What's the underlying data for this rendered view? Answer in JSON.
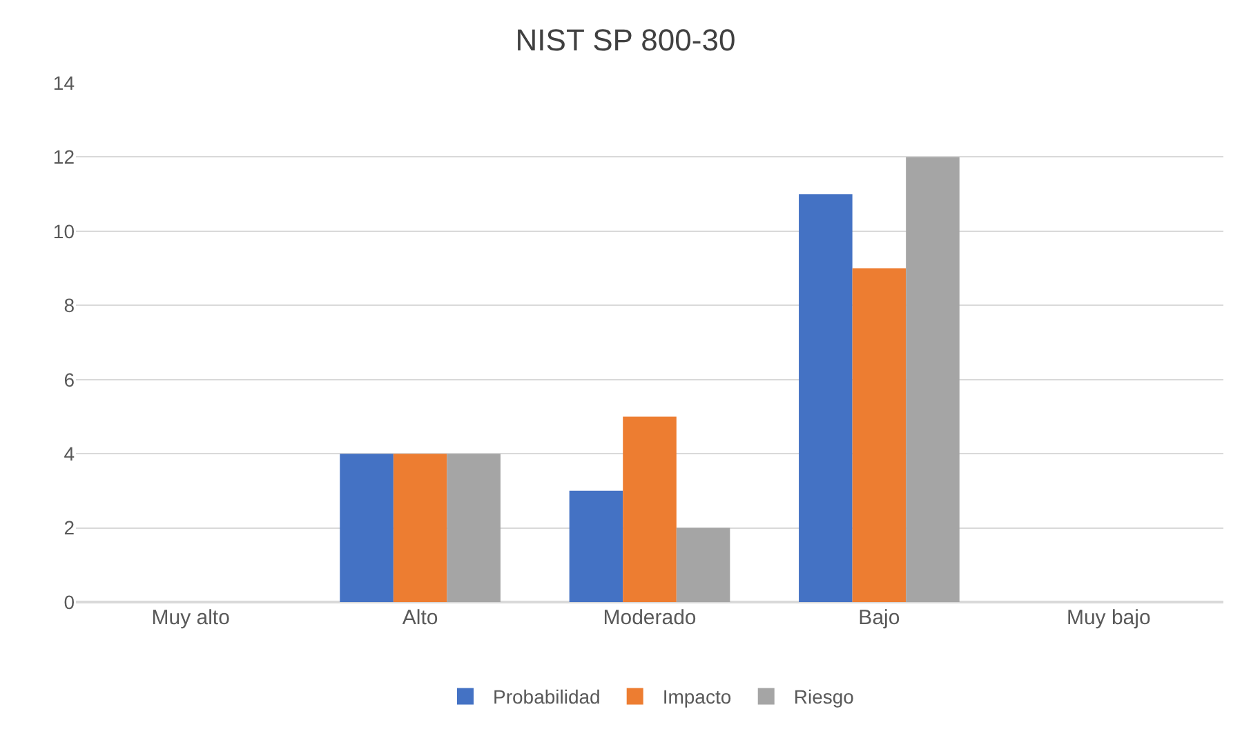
{
  "chart_data": {
    "type": "bar",
    "title": "NIST SP 800-30",
    "categories": [
      "Muy alto",
      "Alto",
      "Moderado",
      "Bajo",
      "Muy bajo"
    ],
    "series": [
      {
        "name": "Probabilidad",
        "color": "#4472c4",
        "values": [
          0,
          4,
          3,
          11,
          0
        ]
      },
      {
        "name": "Impacto",
        "color": "#ed7d31",
        "values": [
          0,
          4,
          5,
          9,
          0
        ]
      },
      {
        "name": "Riesgo",
        "color": "#a5a5a5",
        "values": [
          0,
          4,
          2,
          12,
          0
        ]
      }
    ],
    "ylim": [
      0,
      14
    ],
    "yticks": [
      0,
      2,
      4,
      6,
      8,
      10,
      12,
      14
    ],
    "grid": "y",
    "legend": "bottom"
  }
}
